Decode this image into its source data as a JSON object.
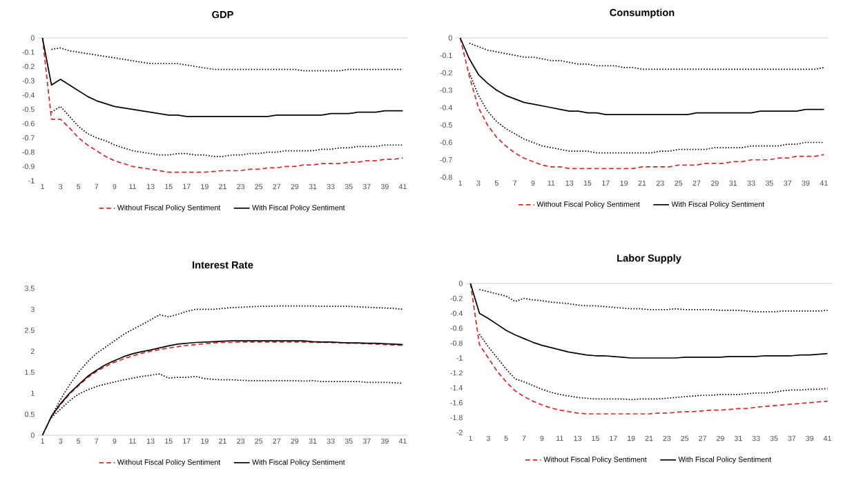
{
  "chart_data": [
    {
      "type": "line",
      "title": "GDP",
      "categories": [
        "1",
        null,
        "3",
        null,
        "5",
        null,
        "7",
        null,
        "9",
        null,
        "11",
        null,
        "13",
        null,
        "15",
        null,
        "17",
        null,
        "19",
        null,
        "21",
        null,
        "23",
        null,
        "25",
        null,
        "27",
        null,
        "29",
        null,
        "31",
        null,
        "33",
        null,
        "35",
        null,
        "37",
        null,
        "39",
        null,
        "41"
      ],
      "ylim": [
        -1,
        0
      ],
      "yticks": [
        -1,
        -0.9,
        -0.8,
        -0.7,
        -0.6,
        -0.5,
        -0.4,
        -0.3,
        -0.2,
        -0.1,
        0
      ],
      "legend": "bottom",
      "series": [
        {
          "name": "Without Fiscal Policy Sentiment",
          "color": "#d42a2a",
          "line_style": "dashed",
          "values": [
            0,
            -0.57,
            -0.57,
            -0.63,
            -0.7,
            -0.75,
            -0.79,
            -0.83,
            -0.86,
            -0.88,
            -0.9,
            -0.91,
            -0.92,
            -0.93,
            -0.94,
            -0.94,
            -0.94,
            -0.94,
            -0.94,
            -0.935,
            -0.93,
            -0.93,
            -0.93,
            -0.92,
            -0.92,
            -0.91,
            -0.91,
            -0.9,
            -0.9,
            -0.89,
            -0.89,
            -0.88,
            -0.88,
            -0.88,
            -0.87,
            -0.87,
            -0.86,
            -0.86,
            -0.85,
            -0.85,
            -0.84
          ]
        },
        {
          "name": "With Fiscal Policy Sentiment",
          "color": "#000000",
          "line_style": "solid",
          "values": [
            0,
            -0.33,
            -0.29,
            -0.33,
            -0.37,
            -0.41,
            -0.44,
            -0.46,
            -0.48,
            -0.49,
            -0.5,
            -0.51,
            -0.52,
            -0.53,
            -0.54,
            -0.54,
            -0.55,
            -0.55,
            -0.55,
            -0.55,
            -0.55,
            -0.55,
            -0.55,
            -0.55,
            -0.55,
            -0.55,
            -0.54,
            -0.54,
            -0.54,
            -0.54,
            -0.54,
            -0.54,
            -0.53,
            -0.53,
            -0.53,
            -0.52,
            -0.52,
            -0.52,
            -0.51,
            -0.51,
            -0.51
          ]
        },
        {
          "color": "#000000",
          "line_style": "dotted",
          "values": [
            null,
            -0.08,
            -0.07,
            -0.09,
            -0.1,
            -0.11,
            -0.12,
            -0.13,
            -0.14,
            -0.15,
            -0.16,
            -0.17,
            -0.18,
            -0.18,
            -0.18,
            -0.18,
            -0.19,
            -0.2,
            -0.21,
            -0.22,
            -0.22,
            -0.22,
            -0.22,
            -0.22,
            -0.22,
            -0.22,
            -0.22,
            -0.22,
            -0.22,
            -0.23,
            -0.23,
            -0.23,
            -0.23,
            -0.23,
            -0.22,
            -0.22,
            -0.22,
            -0.22,
            -0.22,
            -0.22,
            -0.22
          ]
        },
        {
          "color": "#000000",
          "line_style": "dotted",
          "values": [
            null,
            -0.52,
            -0.48,
            -0.55,
            -0.62,
            -0.67,
            -0.7,
            -0.72,
            -0.75,
            -0.77,
            -0.79,
            -0.8,
            -0.81,
            -0.82,
            -0.82,
            -0.81,
            -0.81,
            -0.82,
            -0.82,
            -0.83,
            -0.83,
            -0.82,
            -0.82,
            -0.81,
            -0.81,
            -0.8,
            -0.8,
            -0.79,
            -0.79,
            -0.79,
            -0.79,
            -0.78,
            -0.78,
            -0.77,
            -0.77,
            -0.76,
            -0.76,
            -0.76,
            -0.75,
            -0.75,
            -0.75
          ]
        }
      ]
    },
    {
      "type": "line",
      "title": "Consumption",
      "categories": [
        "1",
        null,
        "3",
        null,
        "5",
        null,
        "7",
        null,
        "9",
        null,
        "11",
        null,
        "13",
        null,
        "15",
        null,
        "17",
        null,
        "19",
        null,
        "21",
        null,
        "23",
        null,
        "25",
        null,
        "27",
        null,
        "29",
        null,
        "31",
        null,
        "33",
        null,
        "35",
        null,
        "37",
        null,
        "39",
        null,
        "41"
      ],
      "ylim": [
        -0.8,
        0
      ],
      "yticks": [
        -0.8,
        -0.7,
        -0.6,
        -0.5,
        -0.4,
        -0.3,
        -0.2,
        -0.1,
        0
      ],
      "legend": "bottom",
      "series": [
        {
          "name": "Without Fiscal Policy Sentiment",
          "color": "#d42a2a",
          "line_style": "dashed",
          "values": [
            0,
            -0.22,
            -0.4,
            -0.5,
            -0.57,
            -0.62,
            -0.66,
            -0.69,
            -0.71,
            -0.73,
            -0.74,
            -0.74,
            -0.75,
            -0.75,
            -0.75,
            -0.75,
            -0.75,
            -0.75,
            -0.75,
            -0.75,
            -0.74,
            -0.74,
            -0.74,
            -0.74,
            -0.73,
            -0.73,
            -0.73,
            -0.72,
            -0.72,
            -0.72,
            -0.71,
            -0.71,
            -0.7,
            -0.7,
            -0.7,
            -0.69,
            -0.69,
            -0.68,
            -0.68,
            -0.68,
            -0.67
          ]
        },
        {
          "name": "With Fiscal Policy Sentiment",
          "color": "#000000",
          "line_style": "solid",
          "values": [
            0,
            -0.12,
            -0.21,
            -0.26,
            -0.3,
            -0.33,
            -0.35,
            -0.37,
            -0.38,
            -0.39,
            -0.4,
            -0.41,
            -0.42,
            -0.42,
            -0.43,
            -0.43,
            -0.44,
            -0.44,
            -0.44,
            -0.44,
            -0.44,
            -0.44,
            -0.44,
            -0.44,
            -0.44,
            -0.44,
            -0.43,
            -0.43,
            -0.43,
            -0.43,
            -0.43,
            -0.43,
            -0.43,
            -0.42,
            -0.42,
            -0.42,
            -0.42,
            -0.42,
            -0.41,
            -0.41,
            -0.41
          ]
        },
        {
          "color": "#000000",
          "line_style": "dotted",
          "values": [
            null,
            -0.03,
            -0.05,
            -0.07,
            -0.08,
            -0.09,
            -0.1,
            -0.11,
            -0.11,
            -0.12,
            -0.13,
            -0.13,
            -0.14,
            -0.15,
            -0.15,
            -0.16,
            -0.16,
            -0.16,
            -0.17,
            -0.17,
            -0.18,
            -0.18,
            -0.18,
            -0.18,
            -0.18,
            -0.18,
            -0.18,
            -0.18,
            -0.18,
            -0.18,
            -0.18,
            -0.18,
            -0.18,
            -0.18,
            -0.18,
            -0.18,
            -0.18,
            -0.18,
            -0.18,
            -0.18,
            -0.17
          ]
        },
        {
          "color": "#000000",
          "line_style": "dotted",
          "values": [
            null,
            -0.2,
            -0.33,
            -0.42,
            -0.48,
            -0.52,
            -0.55,
            -0.58,
            -0.6,
            -0.62,
            -0.63,
            -0.64,
            -0.65,
            -0.65,
            -0.65,
            -0.66,
            -0.66,
            -0.66,
            -0.66,
            -0.66,
            -0.66,
            -0.66,
            -0.65,
            -0.65,
            -0.64,
            -0.64,
            -0.64,
            -0.64,
            -0.63,
            -0.63,
            -0.63,
            -0.63,
            -0.62,
            -0.62,
            -0.62,
            -0.62,
            -0.61,
            -0.61,
            -0.6,
            -0.6,
            -0.6
          ]
        }
      ]
    },
    {
      "type": "line",
      "title": "Interest Rate",
      "categories": [
        "1",
        null,
        "3",
        null,
        "5",
        null,
        "7",
        null,
        "9",
        null,
        "11",
        null,
        "13",
        null,
        "15",
        null,
        "17",
        null,
        "19",
        null,
        "21",
        null,
        "23",
        null,
        "25",
        null,
        "27",
        null,
        "29",
        null,
        "31",
        null,
        "33",
        null,
        "35",
        null,
        "37",
        null,
        "39",
        null,
        "41"
      ],
      "ylim": [
        0,
        3.5
      ],
      "yticks": [
        0,
        0.5,
        1,
        1.5,
        2,
        2.5,
        3,
        3.5
      ],
      "legend": "bottom",
      "series": [
        {
          "name": "Without Fiscal Policy Sentiment",
          "color": "#d42a2a",
          "line_style": "dashed",
          "values": [
            0,
            0.45,
            0.73,
            0.98,
            1.18,
            1.37,
            1.52,
            1.64,
            1.74,
            1.82,
            1.89,
            1.95,
            2.0,
            2.04,
            2.08,
            2.11,
            2.14,
            2.16,
            2.18,
            2.2,
            2.21,
            2.21,
            2.22,
            2.22,
            2.22,
            2.22,
            2.22,
            2.22,
            2.22,
            2.22,
            2.21,
            2.21,
            2.21,
            2.2,
            2.19,
            2.19,
            2.18,
            2.17,
            2.16,
            2.15,
            2.14
          ]
        },
        {
          "name": "With Fiscal Policy Sentiment",
          "color": "#000000",
          "line_style": "solid",
          "values": [
            0,
            0.45,
            0.75,
            1.0,
            1.2,
            1.4,
            1.55,
            1.68,
            1.78,
            1.87,
            1.94,
            1.99,
            2.03,
            2.08,
            2.13,
            2.17,
            2.19,
            2.21,
            2.22,
            2.23,
            2.24,
            2.25,
            2.25,
            2.25,
            2.25,
            2.25,
            2.25,
            2.25,
            2.25,
            2.25,
            2.23,
            2.22,
            2.22,
            2.21,
            2.2,
            2.2,
            2.19,
            2.19,
            2.18,
            2.17,
            2.16
          ]
        },
        {
          "color": "#000000",
          "line_style": "dotted",
          "values": [
            null,
            0.45,
            0.85,
            1.2,
            1.5,
            1.75,
            1.95,
            2.1,
            2.25,
            2.4,
            2.52,
            2.63,
            2.75,
            2.87,
            2.82,
            2.88,
            2.95,
            3.0,
            3.0,
            3.0,
            3.02,
            3.04,
            3.05,
            3.06,
            3.07,
            3.07,
            3.08,
            3.08,
            3.08,
            3.08,
            3.08,
            3.07,
            3.07,
            3.07,
            3.07,
            3.06,
            3.05,
            3.04,
            3.03,
            3.02,
            3.0
          ]
        },
        {
          "color": "#000000",
          "line_style": "dotted",
          "values": [
            null,
            0.42,
            0.62,
            0.82,
            0.98,
            1.08,
            1.16,
            1.22,
            1.27,
            1.32,
            1.36,
            1.4,
            1.43,
            1.46,
            1.36,
            1.38,
            1.38,
            1.4,
            1.35,
            1.33,
            1.32,
            1.32,
            1.31,
            1.3,
            1.3,
            1.3,
            1.3,
            1.3,
            1.3,
            1.29,
            1.3,
            1.28,
            1.28,
            1.28,
            1.28,
            1.28,
            1.26,
            1.26,
            1.26,
            1.25,
            1.24
          ]
        }
      ]
    },
    {
      "type": "line",
      "title": "Labor Supply",
      "categories": [
        "1",
        null,
        "3",
        null,
        "5",
        null,
        "7",
        null,
        "9",
        null,
        "11",
        null,
        "13",
        null,
        "15",
        null,
        "17",
        null,
        "19",
        null,
        "21",
        null,
        "23",
        null,
        "25",
        null,
        "27",
        null,
        "29",
        null,
        "31",
        null,
        "33",
        null,
        "35",
        null,
        "37",
        null,
        "39",
        null,
        "41"
      ],
      "ylim": [
        -2,
        0
      ],
      "yticks": [
        -2,
        -1.8,
        -1.6,
        -1.4,
        -1.2,
        -1,
        -0.8,
        -0.6,
        -0.4,
        -0.2,
        0
      ],
      "legend": "bottom",
      "series": [
        {
          "name": "Without Fiscal Policy Sentiment",
          "color": "#d42a2a",
          "line_style": "dashed",
          "values": [
            0,
            -0.82,
            -1.0,
            -1.18,
            -1.32,
            -1.44,
            -1.52,
            -1.58,
            -1.63,
            -1.67,
            -1.7,
            -1.72,
            -1.74,
            -1.75,
            -1.75,
            -1.75,
            -1.75,
            -1.75,
            -1.75,
            -1.75,
            -1.75,
            -1.74,
            -1.74,
            -1.73,
            -1.72,
            -1.72,
            -1.71,
            -1.7,
            -1.7,
            -1.69,
            -1.68,
            -1.68,
            -1.66,
            -1.65,
            -1.64,
            -1.63,
            -1.62,
            -1.61,
            -1.6,
            -1.59,
            -1.58
          ]
        },
        {
          "name": "With Fiscal Policy Sentiment",
          "color": "#000000",
          "line_style": "solid",
          "values": [
            0,
            -0.4,
            -0.47,
            -0.55,
            -0.63,
            -0.69,
            -0.74,
            -0.79,
            -0.83,
            -0.86,
            -0.89,
            -0.92,
            -0.94,
            -0.96,
            -0.97,
            -0.97,
            -0.98,
            -0.99,
            -1.0,
            -1.0,
            -1.0,
            -1.0,
            -1.0,
            -1.0,
            -0.99,
            -0.99,
            -0.99,
            -0.99,
            -0.99,
            -0.98,
            -0.98,
            -0.98,
            -0.98,
            -0.97,
            -0.97,
            -0.97,
            -0.97,
            -0.96,
            -0.96,
            -0.95,
            -0.94
          ]
        },
        {
          "color": "#000000",
          "line_style": "dotted",
          "values": [
            null,
            -0.08,
            -0.11,
            -0.14,
            -0.17,
            -0.24,
            -0.2,
            -0.22,
            -0.23,
            -0.25,
            -0.26,
            -0.27,
            -0.29,
            -0.3,
            -0.3,
            -0.31,
            -0.32,
            -0.33,
            -0.34,
            -0.34,
            -0.35,
            -0.35,
            -0.35,
            -0.34,
            -0.35,
            -0.35,
            -0.35,
            -0.35,
            -0.36,
            -0.36,
            -0.36,
            -0.37,
            -0.38,
            -0.38,
            -0.38,
            -0.37,
            -0.37,
            -0.37,
            -0.37,
            -0.37,
            -0.36
          ]
        },
        {
          "color": "#000000",
          "line_style": "dotted",
          "values": [
            null,
            -0.68,
            -0.85,
            -1.0,
            -1.15,
            -1.28,
            -1.32,
            -1.37,
            -1.42,
            -1.46,
            -1.49,
            -1.51,
            -1.53,
            -1.54,
            -1.55,
            -1.55,
            -1.55,
            -1.55,
            -1.56,
            -1.55,
            -1.55,
            -1.55,
            -1.54,
            -1.53,
            -1.52,
            -1.51,
            -1.5,
            -1.5,
            -1.49,
            -1.49,
            -1.49,
            -1.48,
            -1.47,
            -1.47,
            -1.46,
            -1.44,
            -1.43,
            -1.43,
            -1.42,
            -1.42,
            -1.41
          ]
        }
      ]
    }
  ]
}
